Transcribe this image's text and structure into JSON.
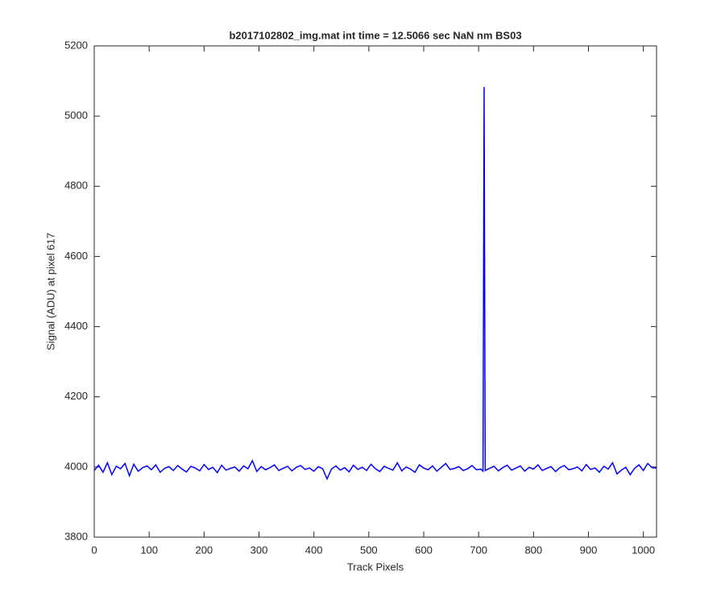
{
  "chart_data": {
    "type": "line",
    "title": "b2017102802_img.mat int time = 12.5066 sec  NaN nm BS03",
    "x_label": "Track Pixels",
    "y_label": "Signal (ADU) at pixel 617",
    "xlim": [
      0,
      1024
    ],
    "ylim": [
      3800,
      5200
    ],
    "xticks": [
      0,
      100,
      200,
      300,
      400,
      500,
      600,
      700,
      800,
      900,
      1000
    ],
    "yticks": [
      3800,
      4000,
      4200,
      4400,
      4600,
      4800,
      5000,
      5200
    ],
    "x": [
      0,
      8,
      16,
      24,
      32,
      40,
      48,
      56,
      64,
      72,
      80,
      88,
      96,
      104,
      112,
      120,
      128,
      136,
      144,
      152,
      160,
      168,
      176,
      184,
      192,
      200,
      208,
      216,
      224,
      232,
      240,
      248,
      256,
      264,
      272,
      280,
      288,
      296,
      304,
      312,
      320,
      328,
      336,
      344,
      352,
      360,
      368,
      376,
      384,
      392,
      400,
      408,
      416,
      424,
      432,
      440,
      448,
      456,
      464,
      472,
      480,
      488,
      496,
      504,
      512,
      520,
      528,
      536,
      544,
      552,
      560,
      568,
      576,
      584,
      592,
      600,
      608,
      616,
      624,
      632,
      640,
      648,
      656,
      664,
      672,
      680,
      688,
      696,
      704,
      708,
      710,
      712,
      720,
      728,
      736,
      744,
      752,
      760,
      768,
      776,
      784,
      792,
      800,
      808,
      816,
      824,
      832,
      840,
      848,
      856,
      864,
      872,
      880,
      888,
      896,
      904,
      912,
      920,
      928,
      936,
      944,
      952,
      960,
      968,
      976,
      984,
      992,
      1000,
      1008,
      1016,
      1024
    ],
    "series": [
      {
        "color": "#0000ff",
        "values": [
          3990,
          4005,
          3985,
          4012,
          3978,
          4002,
          3995,
          4010,
          3975,
          4008,
          3988,
          3998,
          4003,
          3992,
          4006,
          3985,
          3996,
          4001,
          3990,
          4004,
          3994,
          3986,
          4002,
          3997,
          3989,
          4007,
          3993,
          3999,
          3984,
          4005,
          3991,
          3996,
          4000,
          3988,
          4003,
          3995,
          4018,
          3987,
          4001,
          3992,
          3998,
          4006,
          3990,
          3996,
          4002,
          3989,
          3999,
          4004,
          3993,
          3997,
          3988,
          4001,
          3995,
          3966,
          3994,
          4003,
          3991,
          3998,
          3986,
          4005,
          3993,
          3999,
          3990,
          4008,
          3995,
          3987,
          4002,
          3996,
          3991,
          4012,
          3989,
          4000,
          3994,
          3985,
          4006,
          3997,
          3992,
          4003,
          3988,
          3999,
          4010,
          3993,
          3996,
          4001,
          3990,
          3995,
          4004,
          3992,
          3994,
          3988,
          5083,
          3990,
          3996,
          4002,
          3989,
          3998,
          4005,
          3991,
          3997,
          4003,
          3988,
          3999,
          3994,
          4006,
          3990,
          3996,
          4001,
          3987,
          3998,
          4004,
          3992,
          3995,
          4000,
          3989,
          4007,
          3993,
          3997,
          3985,
          4002,
          3994,
          4012,
          3980,
          3991,
          3999,
          3978,
          3996,
          4006,
          3990,
          4010,
          3998,
          3997
        ]
      }
    ]
  }
}
